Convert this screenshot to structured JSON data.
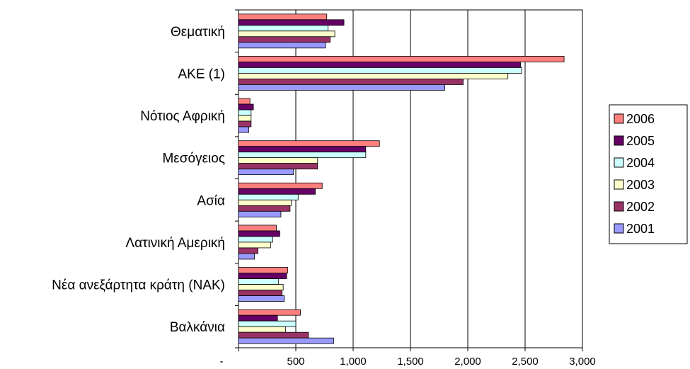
{
  "chart_data": {
    "type": "bar",
    "orientation": "horizontal",
    "categories": [
      "Θεματική",
      "ΑΚΕ (1)",
      "Νότιος Αφρική",
      "Μεσόγειος",
      "Ασία",
      "Λατινική Αμερική",
      "Νέα ανεξάρτητα κράτη (ΝΑΚ)",
      "Βαλκάνια"
    ],
    "series": [
      {
        "name": "2006",
        "color": "#FF7F7F",
        "values": [
          770,
          2840,
          100,
          1230,
          730,
          330,
          430,
          540
        ]
      },
      {
        "name": "2005",
        "color": "#660066",
        "values": [
          920,
          2460,
          130,
          1110,
          670,
          360,
          420,
          340
        ]
      },
      {
        "name": "2004",
        "color": "#CCFFFF",
        "values": [
          780,
          2470,
          110,
          1110,
          520,
          300,
          350,
          500
        ]
      },
      {
        "name": "2003",
        "color": "#FFFFCC",
        "values": [
          840,
          2350,
          110,
          690,
          460,
          280,
          390,
          410
        ]
      },
      {
        "name": "2002",
        "color": "#993366",
        "values": [
          800,
          1960,
          110,
          690,
          450,
          170,
          380,
          610
        ]
      },
      {
        "name": "2001",
        "color": "#9999FF",
        "values": [
          760,
          1800,
          90,
          480,
          370,
          140,
          400,
          830
        ]
      }
    ],
    "xlim": [
      0,
      3000
    ],
    "x_ticks": [
      {
        "value": 0,
        "label": "-"
      },
      {
        "value": 500,
        "label": "500"
      },
      {
        "value": 1000,
        "label": "1,000"
      },
      {
        "value": 1500,
        "label": "1,500"
      },
      {
        "value": 2000,
        "label": "2,000"
      },
      {
        "value": 2500,
        "label": "2,500"
      },
      {
        "value": 3000,
        "label": "3,000"
      }
    ],
    "grid": true,
    "legend_position": "right",
    "title": "",
    "xlabel": "",
    "ylabel": ""
  }
}
